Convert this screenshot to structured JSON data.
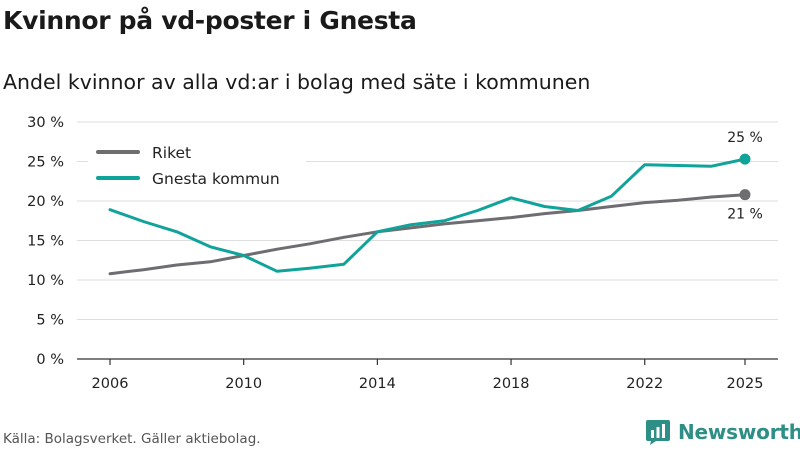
{
  "title": "Kvinnor på vd-poster i Gnesta",
  "subtitle": "Andel kvinnor av alla vd:ar i bolag med säte i kommunen",
  "source": "Källa: Bolagsverket. Gäller aktiebolag.",
  "brand": "Newsworthy",
  "chart_data": {
    "type": "line",
    "title": "Kvinnor på vd-poster i Gnesta",
    "subtitle": "Andel kvinnor av alla vd:ar i bolag med säte i kommunen",
    "xlabel": "",
    "ylabel": "",
    "xlim": [
      2006,
      2025
    ],
    "ylim": [
      0,
      30
    ],
    "x_ticks": [
      2006,
      2010,
      2014,
      2018,
      2022,
      2025
    ],
    "x_tick_labels": [
      "2006",
      "2010",
      "2014",
      "2018",
      "2022",
      "2025"
    ],
    "y_ticks": [
      0,
      5,
      10,
      15,
      20,
      25,
      30
    ],
    "y_tick_labels": [
      "0 %",
      "5 %",
      "10 %",
      "15 %",
      "20 %",
      "25 %",
      "30 %"
    ],
    "grid": true,
    "legend_position": "top-left",
    "x": [
      2006,
      2007,
      2008,
      2009,
      2010,
      2011,
      2012,
      2013,
      2014,
      2015,
      2016,
      2017,
      2018,
      2019,
      2020,
      2021,
      2022,
      2023,
      2024,
      2025
    ],
    "series": [
      {
        "name": "Riket",
        "color": "#6d6d72",
        "values": [
          10.8,
          11.3,
          11.9,
          12.3,
          13.1,
          13.9,
          14.6,
          15.4,
          16.1,
          16.6,
          17.1,
          17.5,
          17.9,
          18.4,
          18.8,
          19.3,
          19.8,
          20.1,
          20.5,
          20.8
        ],
        "end_label": "21 %"
      },
      {
        "name": "Gnesta kommun",
        "color": "#10a39a",
        "values": [
          18.9,
          17.4,
          16.1,
          14.2,
          13.1,
          11.1,
          11.5,
          12.0,
          16.1,
          17.0,
          17.5,
          18.8,
          20.4,
          19.3,
          18.8,
          20.6,
          24.6,
          24.5,
          24.4,
          25.3
        ],
        "end_label": "25 %"
      }
    ]
  }
}
